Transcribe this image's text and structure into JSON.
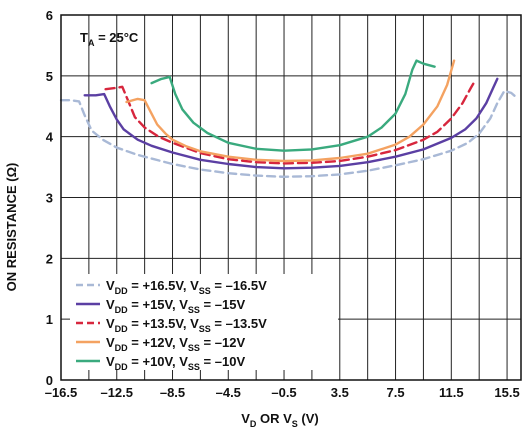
{
  "chart_data": {
    "type": "line",
    "annotation": {
      "main": "T",
      "sub": "A",
      "rest": " = 25°C"
    },
    "ylabel": "ON RESISTANCE (Ω)",
    "xlabel": {
      "a": "V",
      "a_sub": "D",
      "mid": " OR V",
      "b_sub": "S",
      "rest": " (V)"
    },
    "xlim": [
      -16.5,
      16.5
    ],
    "ylim": [
      0,
      6
    ],
    "xticks": [
      -16.5,
      -12.5,
      -8.5,
      -4.5,
      -0.5,
      3.5,
      7.5,
      11.5,
      15.5
    ],
    "xtick_labels": [
      "–16.5",
      "–12.5",
      "–8.5",
      "–4.5",
      "–0.5",
      "3.5",
      "7.5",
      "11.5",
      "15.5"
    ],
    "yticks": [
      0,
      1,
      2,
      3,
      4,
      5,
      6
    ],
    "ytick_labels": [
      "0",
      "1",
      "2",
      "3",
      "4",
      "5",
      "6"
    ],
    "x_minor_gridlines": [
      -14.5,
      -10.5,
      -6.5,
      -2.5,
      1.5,
      5.5,
      9.5,
      13.5
    ],
    "grid": true,
    "legend_position": "bottom-left",
    "series": [
      {
        "legend": {
          "p1": "V",
          "s1": "DD",
          "p2": " = +16.5V, V",
          "s2": "SS",
          "p3": " = –16.5V"
        },
        "color": "#a9b9d6",
        "dash": "8,5",
        "points": [
          [
            -16.5,
            4.6
          ],
          [
            -15.8,
            4.6
          ],
          [
            -15.2,
            4.58
          ],
          [
            -14.8,
            4.35
          ],
          [
            -14.3,
            4.1
          ],
          [
            -13.5,
            3.95
          ],
          [
            -12.5,
            3.82
          ],
          [
            -11,
            3.7
          ],
          [
            -9.5,
            3.61
          ],
          [
            -8.5,
            3.55
          ],
          [
            -6.5,
            3.46
          ],
          [
            -4.5,
            3.4
          ],
          [
            -2.5,
            3.36
          ],
          [
            -0.5,
            3.34
          ],
          [
            1.5,
            3.35
          ],
          [
            3.5,
            3.38
          ],
          [
            5.5,
            3.44
          ],
          [
            7.5,
            3.53
          ],
          [
            9.5,
            3.63
          ],
          [
            11.5,
            3.77
          ],
          [
            12.7,
            3.9
          ],
          [
            13.5,
            4.05
          ],
          [
            14.3,
            4.3
          ],
          [
            14.8,
            4.55
          ],
          [
            15.3,
            4.75
          ],
          [
            15.8,
            4.72
          ],
          [
            16.3,
            4.62
          ]
        ]
      },
      {
        "legend": {
          "p1": "V",
          "s1": "DD",
          "p2": " = +15V, V",
          "s2": "SS",
          "p3": " = –15V"
        },
        "color": "#5b3fa3",
        "dash": "",
        "points": [
          [
            -14.8,
            4.68
          ],
          [
            -14,
            4.68
          ],
          [
            -13.4,
            4.7
          ],
          [
            -13,
            4.5
          ],
          [
            -12.5,
            4.28
          ],
          [
            -12,
            4.12
          ],
          [
            -11,
            3.95
          ],
          [
            -10,
            3.85
          ],
          [
            -8.5,
            3.74
          ],
          [
            -6.5,
            3.62
          ],
          [
            -4.5,
            3.55
          ],
          [
            -2.5,
            3.5
          ],
          [
            -0.5,
            3.48
          ],
          [
            1.5,
            3.49
          ],
          [
            3.5,
            3.52
          ],
          [
            5.5,
            3.58
          ],
          [
            7.5,
            3.67
          ],
          [
            9.5,
            3.79
          ],
          [
            11.5,
            3.98
          ],
          [
            12.5,
            4.12
          ],
          [
            13.3,
            4.3
          ],
          [
            14,
            4.55
          ],
          [
            14.5,
            4.8
          ],
          [
            14.8,
            4.95
          ]
        ]
      },
      {
        "legend": {
          "p1": "V",
          "s1": "DD",
          "p2": " = +13.5V, V",
          "s2": "SS",
          "p3": " = –13.5V"
        },
        "color": "#d7263d",
        "dash": "9,5",
        "points": [
          [
            -13.3,
            4.78
          ],
          [
            -12.6,
            4.8
          ],
          [
            -12.1,
            4.82
          ],
          [
            -11.7,
            4.6
          ],
          [
            -11.2,
            4.32
          ],
          [
            -10.5,
            4.15
          ],
          [
            -9.5,
            4.0
          ],
          [
            -8.5,
            3.9
          ],
          [
            -6.5,
            3.73
          ],
          [
            -4.5,
            3.63
          ],
          [
            -2.5,
            3.58
          ],
          [
            -0.5,
            3.56
          ],
          [
            1.5,
            3.57
          ],
          [
            3.5,
            3.6
          ],
          [
            5.5,
            3.67
          ],
          [
            7.5,
            3.78
          ],
          [
            9.5,
            3.95
          ],
          [
            10.5,
            4.08
          ],
          [
            11.5,
            4.3
          ],
          [
            12.3,
            4.55
          ],
          [
            12.9,
            4.8
          ],
          [
            13.2,
            4.92
          ]
        ]
      },
      {
        "legend": {
          "p1": "V",
          "s1": "DD",
          "p2": " = +12V, V",
          "s2": "SS",
          "p3": " = –12V"
        },
        "color": "#f4a261",
        "dash": "",
        "points": [
          [
            -11.8,
            4.57
          ],
          [
            -11,
            4.62
          ],
          [
            -10.5,
            4.6
          ],
          [
            -10.1,
            4.42
          ],
          [
            -9.6,
            4.2
          ],
          [
            -9,
            4.05
          ],
          [
            -8.5,
            3.95
          ],
          [
            -7.5,
            3.84
          ],
          [
            -6.5,
            3.76
          ],
          [
            -4.5,
            3.67
          ],
          [
            -2.5,
            3.62
          ],
          [
            -0.5,
            3.6
          ],
          [
            1.5,
            3.61
          ],
          [
            3.5,
            3.65
          ],
          [
            5.5,
            3.72
          ],
          [
            7.5,
            3.87
          ],
          [
            8.5,
            4.0
          ],
          [
            9.5,
            4.2
          ],
          [
            10.5,
            4.5
          ],
          [
            11.2,
            4.85
          ],
          [
            11.7,
            5.25
          ]
        ]
      },
      {
        "legend": {
          "p1": "V",
          "s1": "DD",
          "p2": " = +10V, V",
          "s2": "SS",
          "p3": " = –10V"
        },
        "color": "#3aaa7e",
        "dash": "",
        "points": [
          [
            -10,
            4.88
          ],
          [
            -9.3,
            4.95
          ],
          [
            -8.7,
            4.98
          ],
          [
            -8.3,
            4.7
          ],
          [
            -7.8,
            4.45
          ],
          [
            -7,
            4.23
          ],
          [
            -6,
            4.06
          ],
          [
            -4.5,
            3.9
          ],
          [
            -2.5,
            3.8
          ],
          [
            -0.5,
            3.77
          ],
          [
            1.5,
            3.79
          ],
          [
            3.5,
            3.86
          ],
          [
            5.5,
            4.0
          ],
          [
            6.5,
            4.15
          ],
          [
            7.5,
            4.38
          ],
          [
            8.2,
            4.7
          ],
          [
            8.7,
            5.1
          ],
          [
            9.0,
            5.25
          ],
          [
            9.5,
            5.2
          ],
          [
            10.3,
            5.15
          ]
        ]
      }
    ]
  }
}
